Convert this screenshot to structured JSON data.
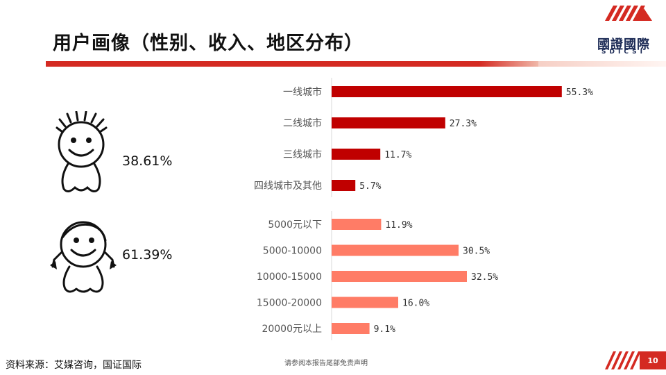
{
  "header": {
    "title": "用户画像（性别、收入、地区分布）",
    "logo_name": "國證國際",
    "logo_sub": "SDICSI"
  },
  "gender": {
    "male_pct": "38.61%",
    "female_pct": "61.39%"
  },
  "colors": {
    "region_bar": "#c00000",
    "income_bar": "#ff7c66",
    "accent": "#d42a22"
  },
  "chart_data": [
    {
      "type": "bar",
      "orientation": "horizontal",
      "categories": [
        "一线城市",
        "二线城市",
        "三线城市",
        "四线城市及其他"
      ],
      "values": [
        55.3,
        27.3,
        11.7,
        5.7
      ],
      "value_labels": [
        "55.3%",
        "27.3%",
        "11.7%",
        "5.7%"
      ],
      "unit": "%"
    },
    {
      "type": "bar",
      "orientation": "horizontal",
      "categories": [
        "5000元以下",
        "5000-10000",
        "10000-15000",
        "15000-20000",
        "20000元以上"
      ],
      "values": [
        11.9,
        30.5,
        32.5,
        16.0,
        9.1
      ],
      "value_labels": [
        "11.9%",
        "30.5%",
        "32.5%",
        "16.0%",
        "9.1%"
      ],
      "unit": "%"
    }
  ],
  "footer": {
    "source": "资料来源：艾媒咨询，国证国际",
    "disclaimer": "请参阅本报告尾部免责声明",
    "page_number": "10"
  }
}
